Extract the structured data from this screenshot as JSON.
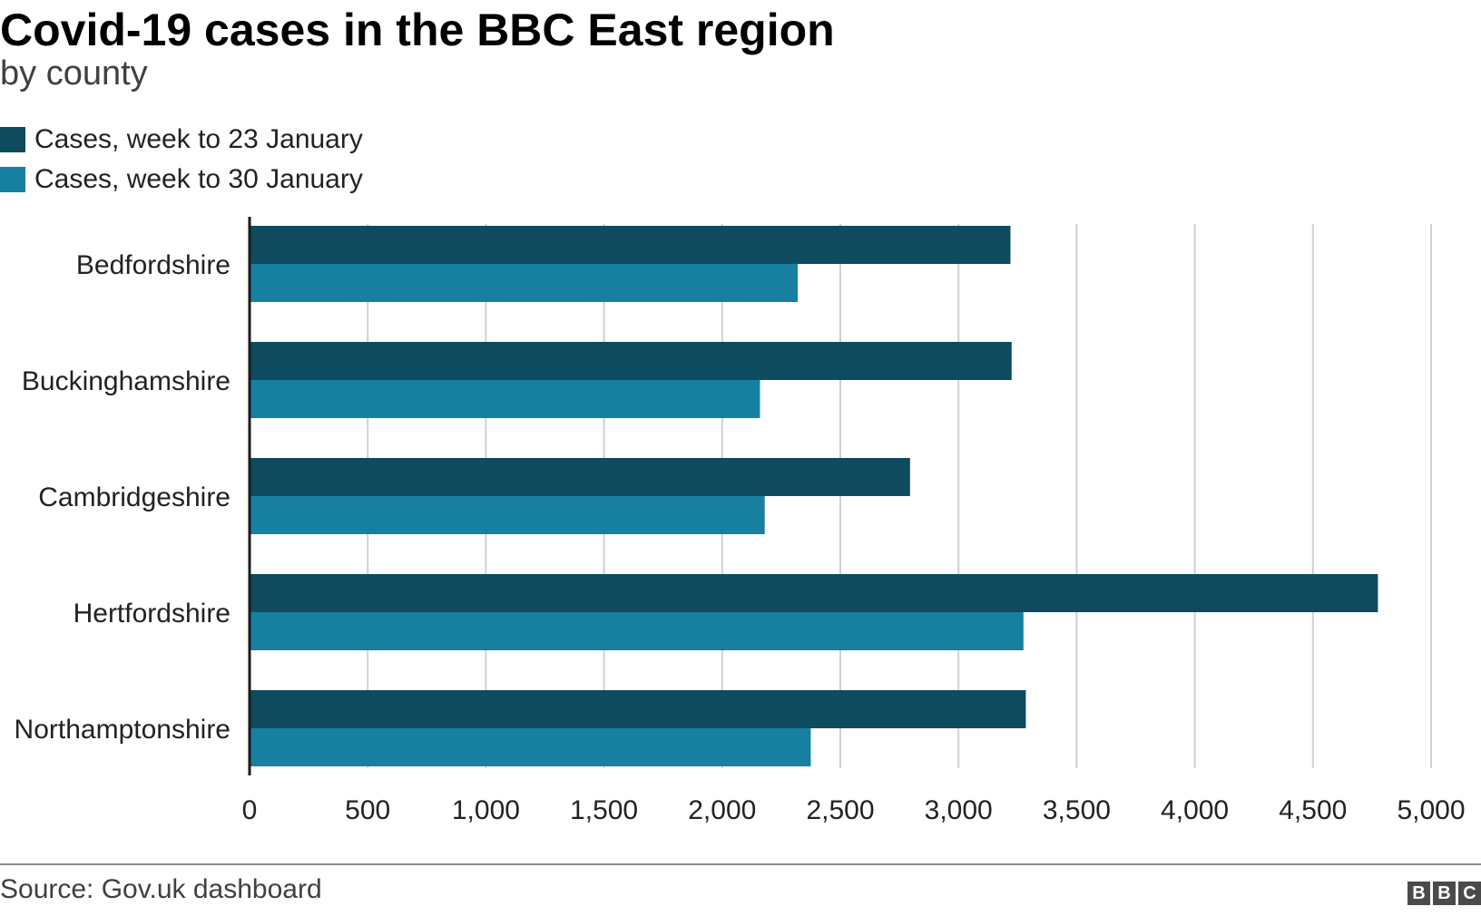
{
  "header": {
    "title": "Covid-19 cases in the BBC East region",
    "subtitle": "by county"
  },
  "legend": [
    {
      "label": "Cases, week to 23 January",
      "color": "#0e4b5e"
    },
    {
      "label": "Cases, week to 30 January",
      "color": "#1780a1"
    }
  ],
  "footer": {
    "source": "Source: Gov.uk dashboard",
    "logo": [
      "B",
      "B",
      "C"
    ]
  },
  "chart_data": {
    "type": "bar",
    "orientation": "horizontal",
    "title": "Covid-19 cases in the BBC East region",
    "subtitle": "by county",
    "categories": [
      "Bedfordshire",
      "Buckinghamshire",
      "Cambridgeshire",
      "Hertfordshire",
      "Northamptonshire"
    ],
    "series": [
      {
        "name": "Cases, week to 23 January",
        "color": "#0e4b5e",
        "values": [
          3220,
          3225,
          2795,
          4775,
          3285
        ]
      },
      {
        "name": "Cases, week to 30 January",
        "color": "#1780a1",
        "values": [
          2320,
          2160,
          2180,
          3275,
          2375
        ]
      }
    ],
    "xlim": [
      0,
      5000
    ],
    "xticks": [
      0,
      500,
      1000,
      1500,
      2000,
      2500,
      3000,
      3500,
      4000,
      4500,
      5000
    ],
    "xtick_labels": [
      "0",
      "500",
      "1,000",
      "1,500",
      "2,000",
      "2,500",
      "3,000",
      "3,500",
      "4,000",
      "4,500",
      "5,000"
    ],
    "grid": "vertical",
    "legend_position": "top-left",
    "xlabel": "",
    "ylabel": ""
  }
}
